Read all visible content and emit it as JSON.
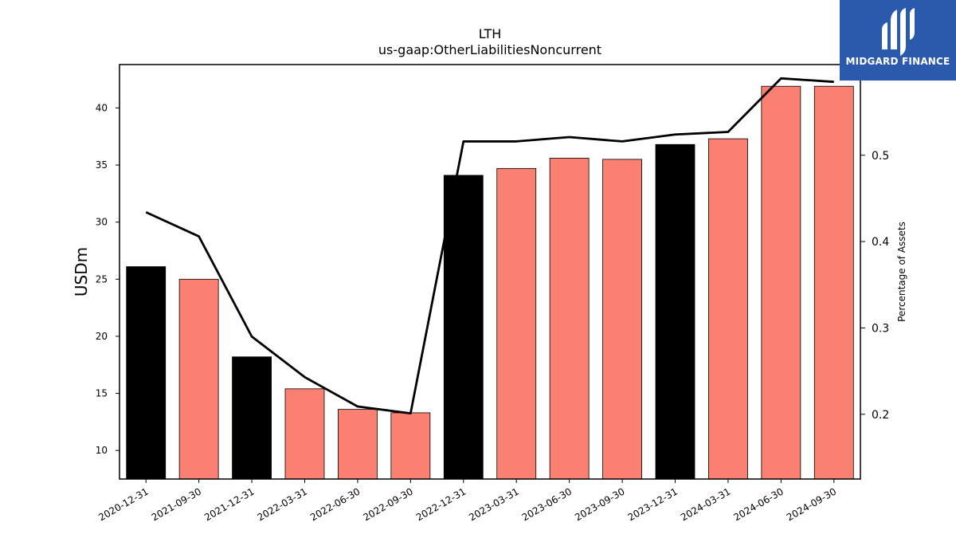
{
  "chart_data": {
    "type": "bar",
    "title": "LTH",
    "subtitle": "us-gaap:OtherLiabilitiesNoncurrent",
    "ylabel": "USDm",
    "y2label": "Percentage of Assets",
    "categories": [
      "2020-12-31",
      "2021-09-30",
      "2021-12-31",
      "2022-03-31",
      "2022-06-30",
      "2022-09-30",
      "2022-12-31",
      "2023-03-31",
      "2023-06-30",
      "2023-09-30",
      "2023-12-31",
      "2024-03-31",
      "2024-06-30",
      "2024-09-30"
    ],
    "values": [
      26.1,
      25.0,
      18.2,
      15.4,
      13.6,
      13.3,
      34.1,
      34.7,
      35.6,
      35.5,
      36.8,
      37.3,
      41.9,
      41.9
    ],
    "bar_colors": [
      "#000000",
      "#fa8072",
      "#000000",
      "#fa8072",
      "#fa8072",
      "#fa8072",
      "#000000",
      "#fa8072",
      "#fa8072",
      "#fa8072",
      "#000000",
      "#fa8072",
      "#fa8072",
      "#fa8072"
    ],
    "line": {
      "values": [
        0.434,
        0.406,
        0.29,
        0.243,
        0.209,
        0.201,
        0.516,
        0.516,
        0.521,
        0.516,
        0.524,
        0.527,
        0.589,
        0.585
      ],
      "color": "#000000"
    },
    "ylim": [
      7.5,
      43.8
    ],
    "y2lim": [
      0.125,
      0.605
    ],
    "yticks": [
      10,
      15,
      20,
      25,
      30,
      35,
      40
    ],
    "y2ticks": [
      0.2,
      0.3,
      0.4,
      0.5
    ],
    "y2tick_labels": [
      "0.2",
      "0.3",
      "0.4",
      "0.5"
    ]
  },
  "logo": {
    "brand": "MIDGARD FINANCE",
    "color": "#2b5aad"
  }
}
